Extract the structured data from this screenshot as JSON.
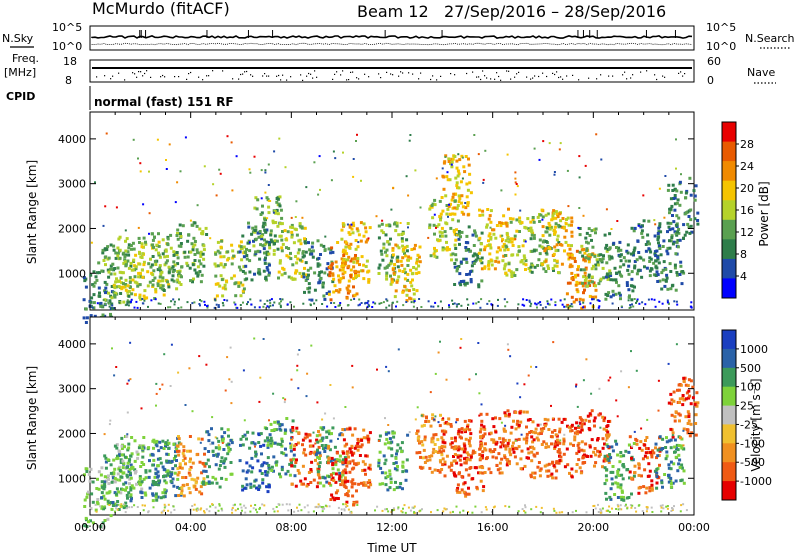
{
  "header": {
    "station": "McMurdo (fitACF)",
    "beam": "Beam 12",
    "daterange": "27/Sep/2016 – 28/Sep/2016"
  },
  "strips": {
    "nsky_label": "N.Sky",
    "nsky_ticks": [
      "10^5",
      "10^0"
    ],
    "nsearch_label": "N.Search",
    "nsearch_ticks": [
      "10^5",
      "10^0"
    ],
    "freq_label_1": "Freq.",
    "freq_label_2": "[MHz]",
    "freq_ticks": [
      "18",
      "8"
    ],
    "nave_label": "Nave",
    "nave_ticks": [
      "60",
      "0"
    ],
    "cpid_label": "CPID",
    "cpid_value": "normal (fast) 151 RF"
  },
  "colors": {
    "power": [
      "#0000ff",
      "#1f4aa8",
      "#2e7d4a",
      "#5aa050",
      "#b5d22a",
      "#f5c400",
      "#f08a00",
      "#e85a00",
      "#e80000"
    ],
    "velocity": [
      "#1a3fc0",
      "#2a62a8",
      "#3c9a5a",
      "#7ed23a",
      "#c0c0c0",
      "#f0c030",
      "#f09020",
      "#ef5a14",
      "#e60000"
    ]
  },
  "chart_data": [
    {
      "type": "heatmap",
      "title": "",
      "ylabel": "Slant Range [km]",
      "xlabel": "",
      "ylim": [
        180,
        4600
      ],
      "yticks": [
        "1000",
        "2000",
        "3000",
        "4000"
      ],
      "xticks": [
        "00:00",
        "04:00",
        "08:00",
        "12:00",
        "16:00",
        "20:00",
        "00:00"
      ],
      "colorbar": {
        "label": "Power [dB]",
        "ticks": [
          "4",
          "8",
          "12",
          "16",
          "20",
          "24",
          "28"
        ]
      },
      "patches": [
        {
          "x": 0.3,
          "y": 600,
          "v": 8
        },
        {
          "x": 1.0,
          "y": 1000,
          "v": 12
        },
        {
          "x": 1.5,
          "y": 1200,
          "v": 14
        },
        {
          "x": 2.5,
          "y": 1100,
          "v": 16
        },
        {
          "x": 3.0,
          "y": 1300,
          "v": 12
        },
        {
          "x": 4.0,
          "y": 1500,
          "v": 12
        },
        {
          "x": 5.5,
          "y": 1100,
          "v": 16
        },
        {
          "x": 6.5,
          "y": 1500,
          "v": 8
        },
        {
          "x": 7.0,
          "y": 2100,
          "v": 12
        },
        {
          "x": 8.0,
          "y": 1500,
          "v": 16
        },
        {
          "x": 9.0,
          "y": 1100,
          "v": 10
        },
        {
          "x": 10.0,
          "y": 1100,
          "v": 24
        },
        {
          "x": 10.5,
          "y": 1500,
          "v": 20
        },
        {
          "x": 12.0,
          "y": 1500,
          "v": 12
        },
        {
          "x": 12.5,
          "y": 1000,
          "v": 20
        },
        {
          "x": 14.0,
          "y": 2000,
          "v": 16
        },
        {
          "x": 14.5,
          "y": 3000,
          "v": 20
        },
        {
          "x": 15.0,
          "y": 1400,
          "v": 10
        },
        {
          "x": 16.0,
          "y": 1800,
          "v": 20
        },
        {
          "x": 17.0,
          "y": 1600,
          "v": 16
        },
        {
          "x": 18.0,
          "y": 1700,
          "v": 12
        },
        {
          "x": 18.5,
          "y": 1800,
          "v": 20
        },
        {
          "x": 19.5,
          "y": 900,
          "v": 24
        },
        {
          "x": 20.0,
          "y": 1400,
          "v": 12
        },
        {
          "x": 21.0,
          "y": 1100,
          "v": 8
        },
        {
          "x": 22.0,
          "y": 1600,
          "v": 8
        },
        {
          "x": 23.0,
          "y": 1300,
          "v": 10
        },
        {
          "x": 23.5,
          "y": 2500,
          "v": 8
        }
      ]
    },
    {
      "type": "heatmap",
      "title": "",
      "ylabel": "Slant Range [km]",
      "xlabel": "Time UT",
      "ylim": [
        180,
        4600
      ],
      "yticks": [
        "1000",
        "2000",
        "3000",
        "4000"
      ],
      "xticks": [
        "00:00",
        "04:00",
        "08:00",
        "12:00",
        "16:00",
        "20:00",
        "00:00"
      ],
      "colorbar": {
        "label": "Velocity [m s⁻¹]",
        "ticks": [
          "1000",
          "500",
          "100",
          "25",
          "-25",
          "-100",
          "-500",
          "-1000"
        ]
      },
      "patches": [
        {
          "x": 0.3,
          "y": 600,
          "v": 60
        },
        {
          "x": 1.0,
          "y": 1000,
          "v": 100
        },
        {
          "x": 1.5,
          "y": 1300,
          "v": 60
        },
        {
          "x": 2.5,
          "y": 1200,
          "v": 200
        },
        {
          "x": 3.0,
          "y": 1300,
          "v": 100
        },
        {
          "x": 4.0,
          "y": 1300,
          "v": -200
        },
        {
          "x": 5.0,
          "y": 1500,
          "v": 100
        },
        {
          "x": 6.5,
          "y": 1400,
          "v": 600
        },
        {
          "x": 7.5,
          "y": 1700,
          "v": 200
        },
        {
          "x": 8.5,
          "y": 1500,
          "v": -300
        },
        {
          "x": 9.5,
          "y": 1500,
          "v": 200
        },
        {
          "x": 10.0,
          "y": 1100,
          "v": -500
        },
        {
          "x": 10.5,
          "y": 1500,
          "v": -300
        },
        {
          "x": 12.0,
          "y": 1400,
          "v": 300
        },
        {
          "x": 13.5,
          "y": 1800,
          "v": -200
        },
        {
          "x": 14.5,
          "y": 1700,
          "v": -500
        },
        {
          "x": 15.0,
          "y": 1300,
          "v": -300
        },
        {
          "x": 16.0,
          "y": 1800,
          "v": -300
        },
        {
          "x": 17.0,
          "y": 1900,
          "v": -500
        },
        {
          "x": 18.0,
          "y": 1700,
          "v": -400
        },
        {
          "x": 19.0,
          "y": 1700,
          "v": -500
        },
        {
          "x": 20.0,
          "y": 1900,
          "v": -300
        },
        {
          "x": 21.0,
          "y": 1200,
          "v": 200
        },
        {
          "x": 22.0,
          "y": 1300,
          "v": -300
        },
        {
          "x": 23.0,
          "y": 1300,
          "v": 300
        },
        {
          "x": 23.5,
          "y": 2600,
          "v": -300
        }
      ]
    }
  ]
}
